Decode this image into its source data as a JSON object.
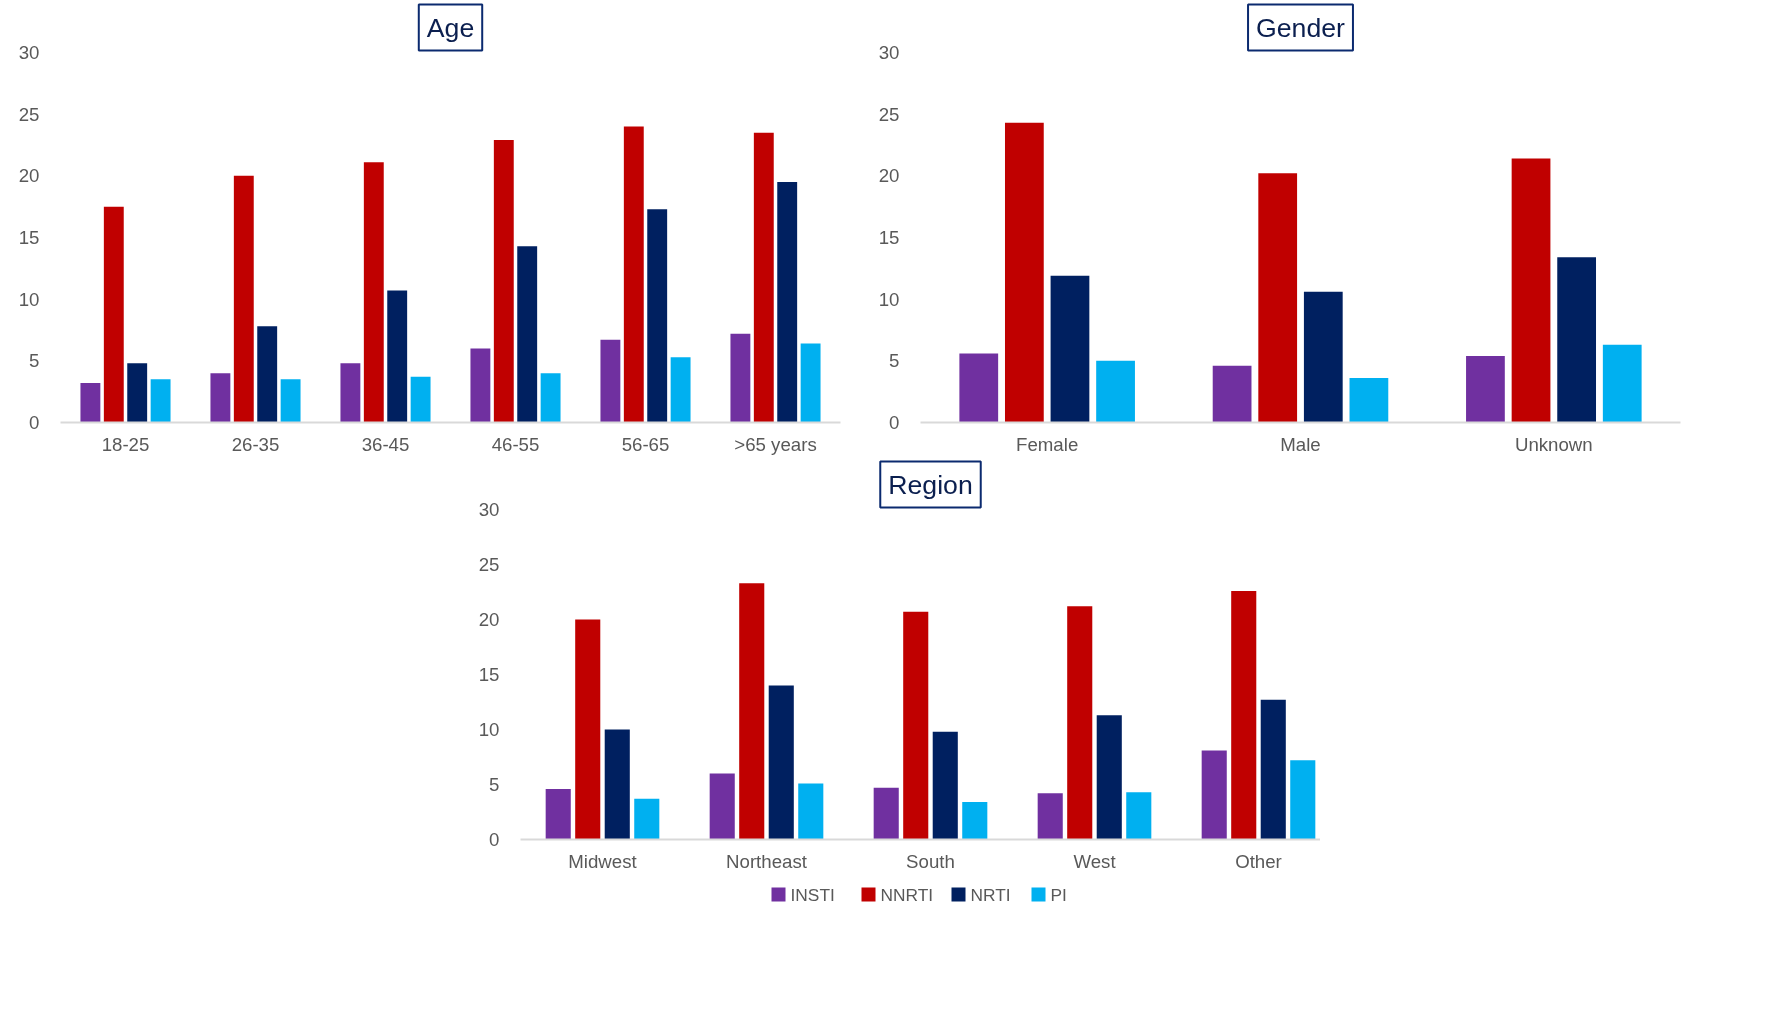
{
  "chart_data": [
    {
      "type": "bar",
      "title": "Age",
      "categories": [
        "18-25",
        "26-35",
        "36-45",
        "46-55",
        "56-65",
        ">65 years"
      ],
      "ylim": [
        0,
        30
      ],
      "yticks": [
        0,
        5,
        10,
        15,
        20,
        25,
        30
      ],
      "grid": false,
      "series": [
        {
          "color": "#7030a0",
          "values": [
            3.2,
            4.0,
            4.8,
            6.0,
            6.7,
            7.2
          ]
        },
        {
          "color": "#c00000",
          "values": [
            17.5,
            20.0,
            21.1,
            22.9,
            24.0,
            23.5
          ]
        },
        {
          "color": "#002060",
          "values": [
            4.8,
            7.8,
            10.7,
            14.3,
            17.3,
            19.5
          ]
        },
        {
          "color": "#00b0f0",
          "values": [
            3.5,
            3.5,
            3.7,
            4.0,
            5.3,
            6.4
          ]
        }
      ]
    },
    {
      "type": "bar",
      "title": "Gender",
      "categories": [
        "Female",
        "Male",
        "Unknown"
      ],
      "ylim": [
        0,
        30
      ],
      "yticks": [
        0,
        5,
        10,
        15,
        20,
        25,
        30
      ],
      "grid": false,
      "series": [
        {
          "color": "#7030a0",
          "values": [
            5.6,
            4.6,
            5.4
          ]
        },
        {
          "color": "#c00000",
          "values": [
            24.3,
            20.2,
            21.4
          ]
        },
        {
          "color": "#002060",
          "values": [
            11.9,
            10.6,
            13.4
          ]
        },
        {
          "color": "#00b0f0",
          "values": [
            5.0,
            3.6,
            6.3
          ]
        }
      ]
    },
    {
      "type": "bar",
      "title": "Region",
      "categories": [
        "Midwest",
        "Northeast",
        "South",
        "West",
        "Other"
      ],
      "ylim": [
        0,
        30
      ],
      "yticks": [
        0,
        5,
        10,
        15,
        20,
        25,
        30
      ],
      "grid": false,
      "legend": "bottom",
      "series": [
        {
          "name": "INSTI",
          "color": "#7030a0",
          "values": [
            4.6,
            6.0,
            4.7,
            4.2,
            8.1
          ]
        },
        {
          "name": "NNRTI",
          "color": "#c00000",
          "values": [
            20.0,
            23.3,
            20.7,
            21.2,
            22.6
          ]
        },
        {
          "name": "NRTI",
          "color": "#002060",
          "values": [
            10.0,
            14.0,
            9.8,
            11.3,
            12.7
          ]
        },
        {
          "name": "PI",
          "color": "#00b0f0",
          "values": [
            3.7,
            5.1,
            3.4,
            4.3,
            7.2
          ]
        }
      ]
    }
  ]
}
